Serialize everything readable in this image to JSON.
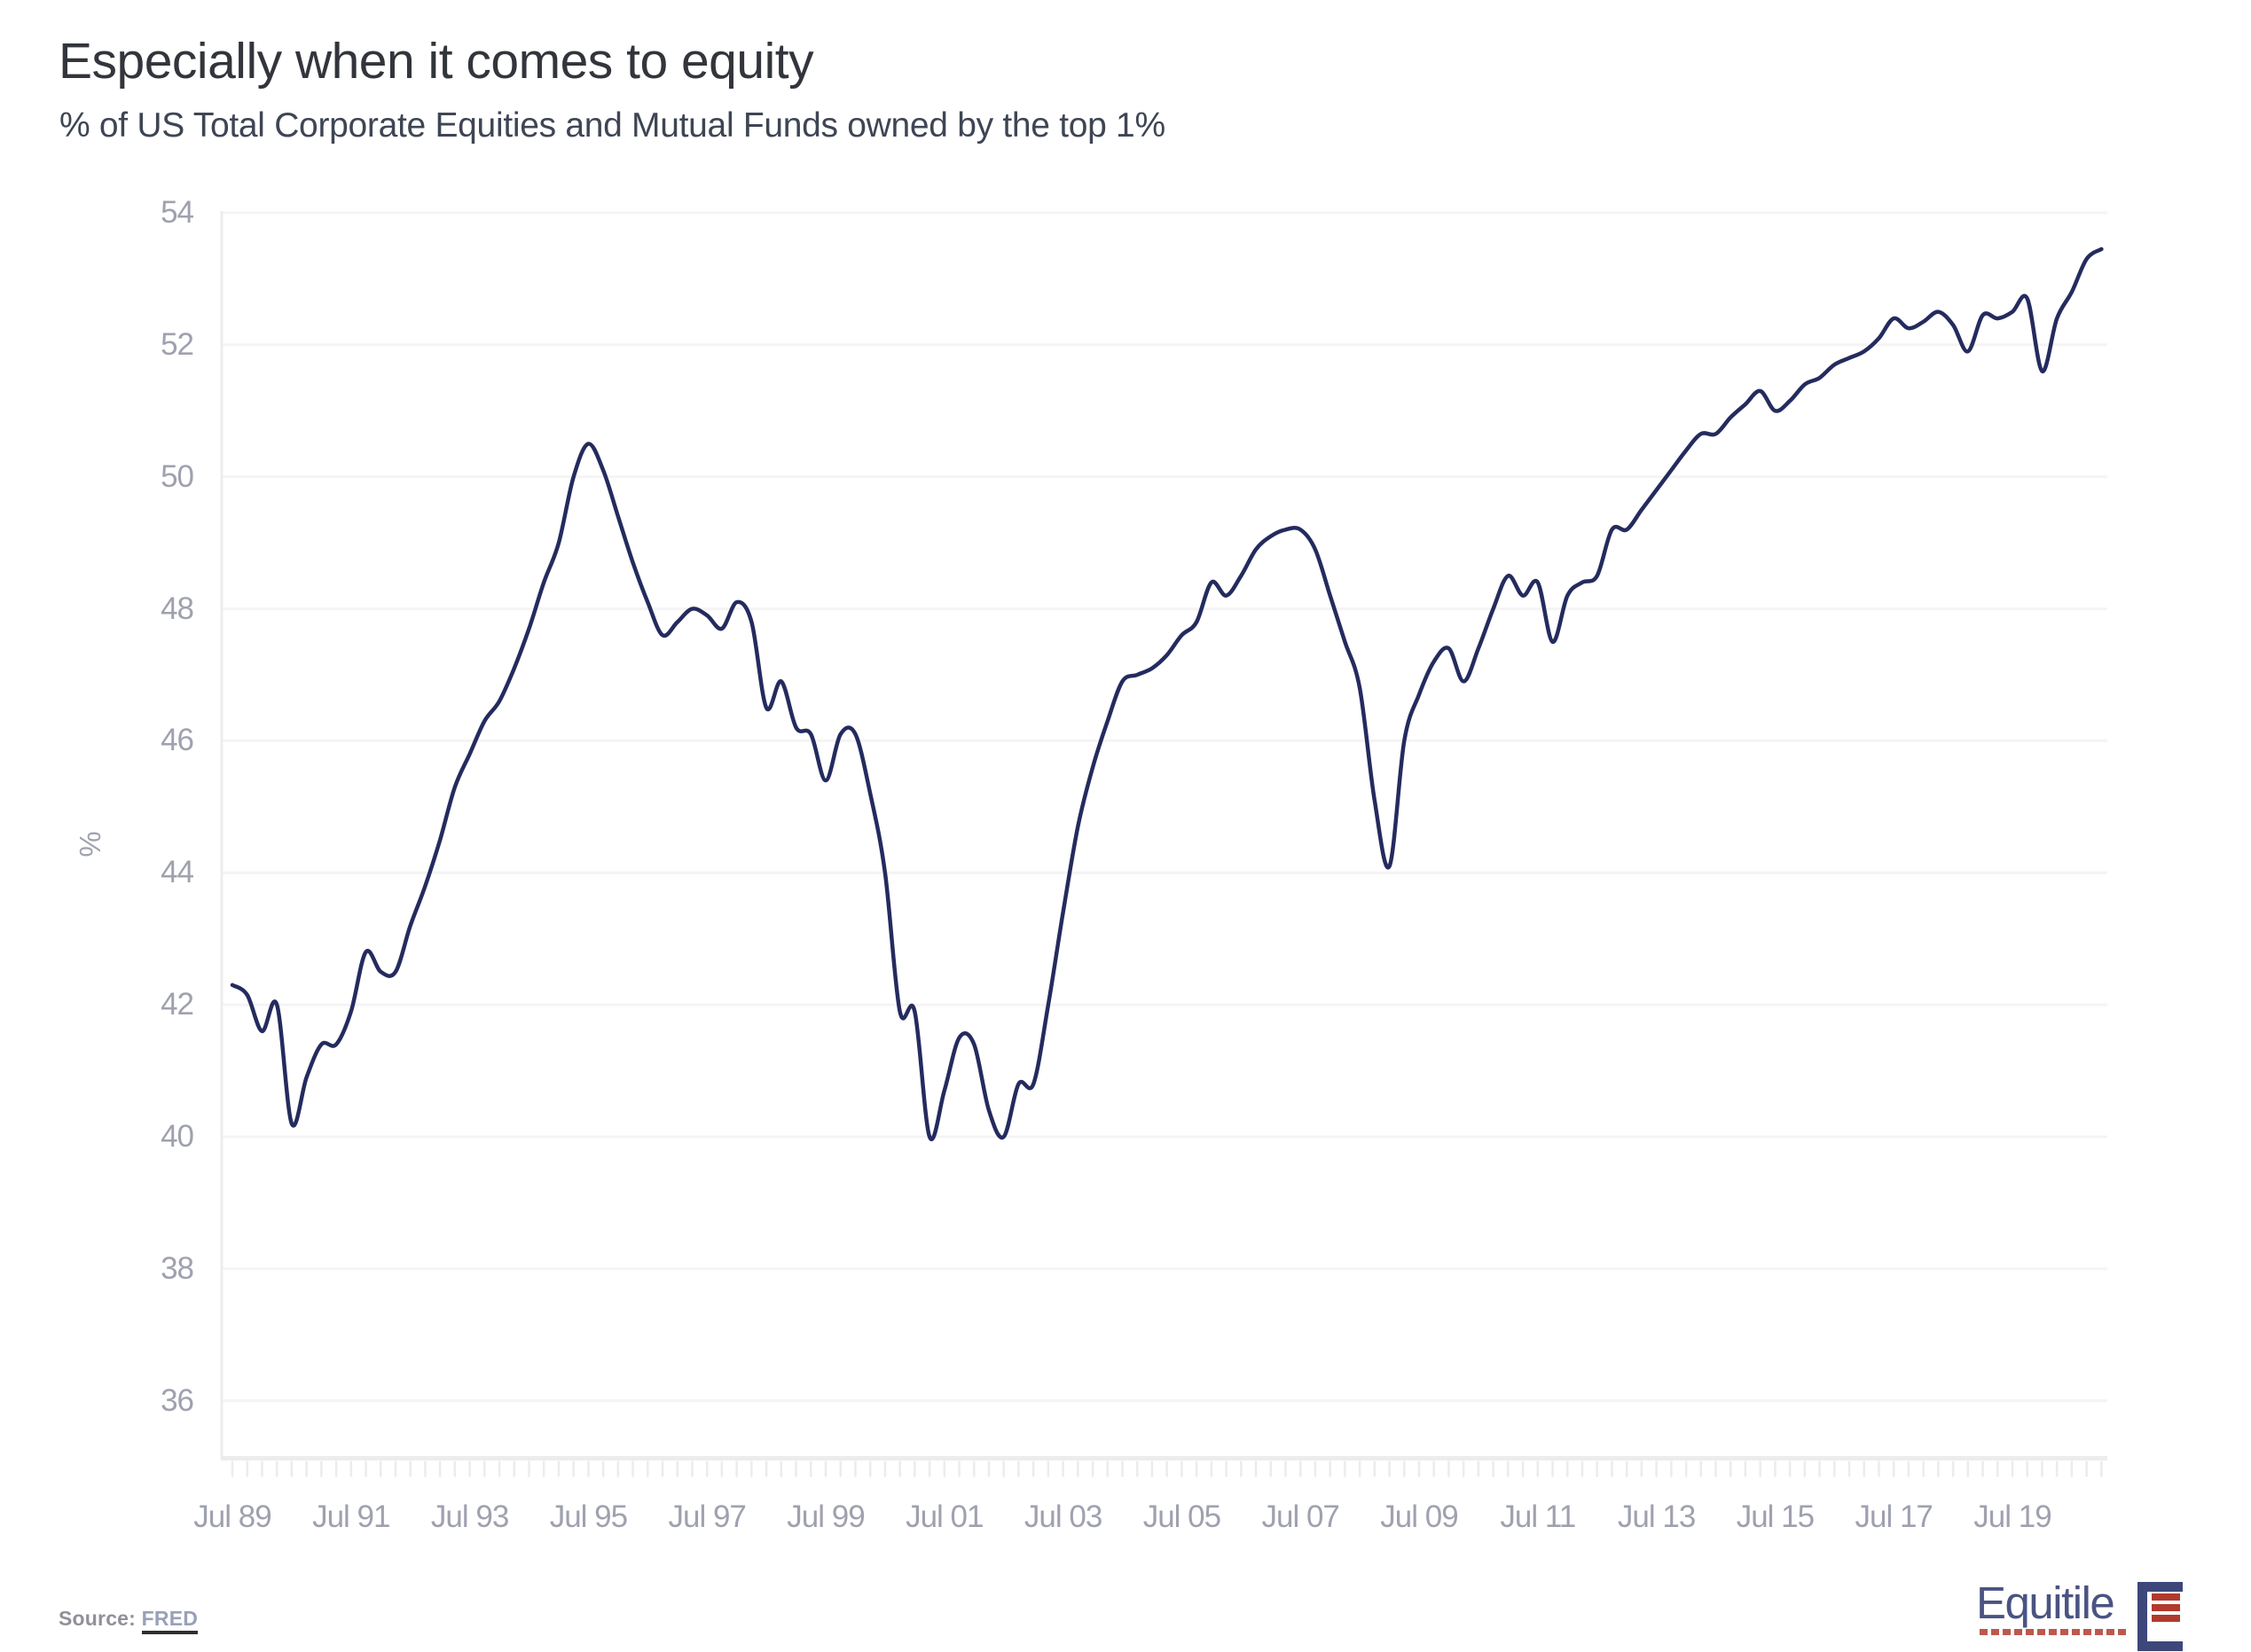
{
  "header": {
    "title": "Especially when it comes to equity",
    "subtitle": "% of US Total Corporate Equities and Mutual Funds owned by the top 1%"
  },
  "source": {
    "label": "Source:",
    "link": "FRED"
  },
  "logo": {
    "brand": "Equitile",
    "mark": "bracket-with-red-bars-icon"
  },
  "colors": {
    "line": "#242b5e",
    "gridline": "#f4f4f4",
    "axis": "#ececec",
    "tick_label": "#9fa1af",
    "title": "#33353c",
    "subtitle": "#3e4554",
    "logo_navy": "#4a5382",
    "logo_red": "#b13a2e"
  },
  "chart_data": {
    "type": "line",
    "title": "Especially when it comes to equity",
    "subtitle": "% of US Total Corporate Equities and Mutual Funds owned by the top 1%",
    "xlabel": "",
    "ylabel": "%",
    "ylim": [
      36,
      54
    ],
    "ytick_step": 2,
    "ytick_labels": [
      "54",
      "52",
      "50",
      "48",
      "46",
      "44",
      "42",
      "40",
      "38",
      "36"
    ],
    "xtick_labels": [
      "Jul 89",
      "Jul 91",
      "Jul 93",
      "Jul 95",
      "Jul 97",
      "Jul 99",
      "Jul 01",
      "Jul 03",
      "Jul 05",
      "Jul 07",
      "Jul 09",
      "Jul 11",
      "Jul 13",
      "Jul 15",
      "Jul 17",
      "Jul 19"
    ],
    "xtick_years": [
      1989.5,
      1991.5,
      1993.5,
      1995.5,
      1997.5,
      1999.5,
      2001.5,
      2003.5,
      2005.5,
      2007.5,
      2009.5,
      2011.5,
      2013.5,
      2015.5,
      2017.5,
      2019.5
    ],
    "x_range_years": [
      1989.5,
      2021.0
    ],
    "minor_tick_interval_years": 0.25,
    "grid": "horizontal-only",
    "legend": "none",
    "series": [
      {
        "name": "% of US Total Corporate Equities and Mutual Funds owned by the top 1%",
        "points": [
          [
            1989.5,
            42.3
          ],
          [
            1989.75,
            42.15
          ],
          [
            1990.0,
            41.6
          ],
          [
            1990.25,
            42.0
          ],
          [
            1990.5,
            40.2
          ],
          [
            1990.75,
            40.9
          ],
          [
            1991.0,
            41.4
          ],
          [
            1991.25,
            41.4
          ],
          [
            1991.5,
            41.9
          ],
          [
            1991.75,
            42.8
          ],
          [
            1992.0,
            42.5
          ],
          [
            1992.25,
            42.5
          ],
          [
            1992.5,
            43.2
          ],
          [
            1992.75,
            43.8
          ],
          [
            1993.0,
            44.5
          ],
          [
            1993.25,
            45.3
          ],
          [
            1993.5,
            45.8
          ],
          [
            1993.75,
            46.3
          ],
          [
            1994.0,
            46.6
          ],
          [
            1994.25,
            47.1
          ],
          [
            1994.5,
            47.7
          ],
          [
            1994.75,
            48.4
          ],
          [
            1995.0,
            49.0
          ],
          [
            1995.25,
            50.0
          ],
          [
            1995.5,
            50.5
          ],
          [
            1995.75,
            50.1
          ],
          [
            1996.0,
            49.4
          ],
          [
            1996.25,
            48.7
          ],
          [
            1996.5,
            48.1
          ],
          [
            1996.75,
            47.6
          ],
          [
            1997.0,
            47.8
          ],
          [
            1997.25,
            48.0
          ],
          [
            1997.5,
            47.9
          ],
          [
            1997.75,
            47.7
          ],
          [
            1998.0,
            48.1
          ],
          [
            1998.25,
            47.8
          ],
          [
            1998.5,
            46.5
          ],
          [
            1998.75,
            46.9
          ],
          [
            1999.0,
            46.2
          ],
          [
            1999.25,
            46.1
          ],
          [
            1999.5,
            45.4
          ],
          [
            1999.75,
            46.1
          ],
          [
            2000.0,
            46.1
          ],
          [
            2000.25,
            45.2
          ],
          [
            2000.5,
            44.0
          ],
          [
            2000.75,
            41.9
          ],
          [
            2001.0,
            41.9
          ],
          [
            2001.25,
            40.0
          ],
          [
            2001.5,
            40.7
          ],
          [
            2001.75,
            41.5
          ],
          [
            2002.0,
            41.4
          ],
          [
            2002.25,
            40.4
          ],
          [
            2002.5,
            40.0
          ],
          [
            2002.75,
            40.8
          ],
          [
            2003.0,
            40.8
          ],
          [
            2003.25,
            42.0
          ],
          [
            2003.5,
            43.4
          ],
          [
            2003.75,
            44.7
          ],
          [
            2004.0,
            45.6
          ],
          [
            2004.25,
            46.3
          ],
          [
            2004.5,
            46.9
          ],
          [
            2004.75,
            47.0
          ],
          [
            2005.0,
            47.1
          ],
          [
            2005.25,
            47.3
          ],
          [
            2005.5,
            47.6
          ],
          [
            2005.75,
            47.8
          ],
          [
            2006.0,
            48.4
          ],
          [
            2006.25,
            48.2
          ],
          [
            2006.5,
            48.5
          ],
          [
            2006.75,
            48.9
          ],
          [
            2007.0,
            49.1
          ],
          [
            2007.25,
            49.2
          ],
          [
            2007.5,
            49.2
          ],
          [
            2007.75,
            48.9
          ],
          [
            2008.0,
            48.2
          ],
          [
            2008.25,
            47.5
          ],
          [
            2008.5,
            46.8
          ],
          [
            2008.75,
            45.1
          ],
          [
            2009.0,
            44.1
          ],
          [
            2009.25,
            46.0
          ],
          [
            2009.5,
            46.7
          ],
          [
            2009.75,
            47.2
          ],
          [
            2010.0,
            47.4
          ],
          [
            2010.25,
            46.9
          ],
          [
            2010.5,
            47.4
          ],
          [
            2010.75,
            48.0
          ],
          [
            2011.0,
            48.5
          ],
          [
            2011.25,
            48.2
          ],
          [
            2011.5,
            48.4
          ],
          [
            2011.75,
            47.5
          ],
          [
            2012.0,
            48.2
          ],
          [
            2012.25,
            48.4
          ],
          [
            2012.5,
            48.5
          ],
          [
            2012.75,
            49.2
          ],
          [
            2013.0,
            49.2
          ],
          [
            2013.25,
            49.5
          ],
          [
            2013.5,
            49.8
          ],
          [
            2013.75,
            50.1
          ],
          [
            2014.0,
            50.4
          ],
          [
            2014.25,
            50.65
          ],
          [
            2014.5,
            50.65
          ],
          [
            2014.75,
            50.9
          ],
          [
            2015.0,
            51.1
          ],
          [
            2015.25,
            51.3
          ],
          [
            2015.5,
            51.0
          ],
          [
            2015.75,
            51.15
          ],
          [
            2016.0,
            51.4
          ],
          [
            2016.25,
            51.5
          ],
          [
            2016.5,
            51.7
          ],
          [
            2016.75,
            51.8
          ],
          [
            2017.0,
            51.9
          ],
          [
            2017.25,
            52.1
          ],
          [
            2017.5,
            52.4
          ],
          [
            2017.75,
            52.25
          ],
          [
            2018.0,
            52.35
          ],
          [
            2018.25,
            52.5
          ],
          [
            2018.5,
            52.3
          ],
          [
            2018.75,
            51.9
          ],
          [
            2019.0,
            52.45
          ],
          [
            2019.25,
            52.4
          ],
          [
            2019.5,
            52.5
          ],
          [
            2019.75,
            52.7
          ],
          [
            2020.0,
            51.6
          ],
          [
            2020.25,
            52.4
          ],
          [
            2020.5,
            52.8
          ],
          [
            2020.75,
            53.3
          ],
          [
            2021.0,
            53.45
          ]
        ]
      }
    ]
  }
}
